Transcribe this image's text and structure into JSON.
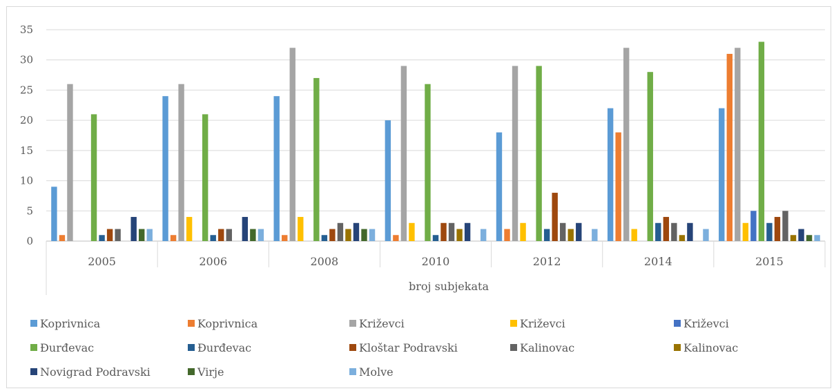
{
  "chart_data": {
    "type": "bar",
    "categories": [
      "2005",
      "2006",
      "2008",
      "2010",
      "2012",
      "2014",
      "2015"
    ],
    "xlabel": "broj subjekata",
    "ylabel": "",
    "ylim": [
      0,
      35
    ],
    "yticks": [
      0,
      5,
      10,
      15,
      20,
      25,
      30,
      35
    ],
    "grid": true,
    "legend_position": "bottom",
    "series": [
      {
        "name": "Koprivnica",
        "color": "#5b9bd5",
        "values": [
          9,
          24,
          24,
          20,
          18,
          22,
          22
        ]
      },
      {
        "name": "Koprivnica",
        "color": "#ed7d31",
        "values": [
          1,
          1,
          1,
          1,
          2,
          18,
          31
        ]
      },
      {
        "name": "Križevci",
        "color": "#a5a5a5",
        "values": [
          26,
          26,
          32,
          29,
          29,
          32,
          32
        ]
      },
      {
        "name": "Križevci",
        "color": "#ffc000",
        "values": [
          0,
          4,
          4,
          3,
          3,
          2,
          3
        ]
      },
      {
        "name": "Križevci",
        "color": "#4472c4",
        "values": [
          0,
          0,
          0,
          0,
          0,
          0,
          5
        ]
      },
      {
        "name": "Đurđevac",
        "color": "#70ad47",
        "values": [
          21,
          21,
          27,
          26,
          29,
          28,
          33
        ]
      },
      {
        "name": "Đurđevac",
        "color": "#255e91",
        "values": [
          1,
          1,
          1,
          1,
          2,
          3,
          3
        ]
      },
      {
        "name": "Kloštar Podravski",
        "color": "#9e480e",
        "values": [
          2,
          2,
          2,
          3,
          8,
          4,
          4
        ]
      },
      {
        "name": "Kalinovac",
        "color": "#636363",
        "values": [
          2,
          2,
          3,
          3,
          3,
          3,
          5
        ]
      },
      {
        "name": "Kalinovac",
        "color": "#997300",
        "values": [
          0,
          0,
          2,
          2,
          2,
          1,
          1
        ]
      },
      {
        "name": "Novigrad Podravski",
        "color": "#264478",
        "values": [
          4,
          4,
          3,
          3,
          3,
          3,
          2
        ]
      },
      {
        "name": "Virje",
        "color": "#43682b",
        "values": [
          2,
          2,
          2,
          0,
          0,
          0,
          1
        ]
      },
      {
        "name": "Molve",
        "color": "#7cafdd",
        "values": [
          2,
          2,
          2,
          2,
          2,
          2,
          1
        ]
      }
    ]
  }
}
